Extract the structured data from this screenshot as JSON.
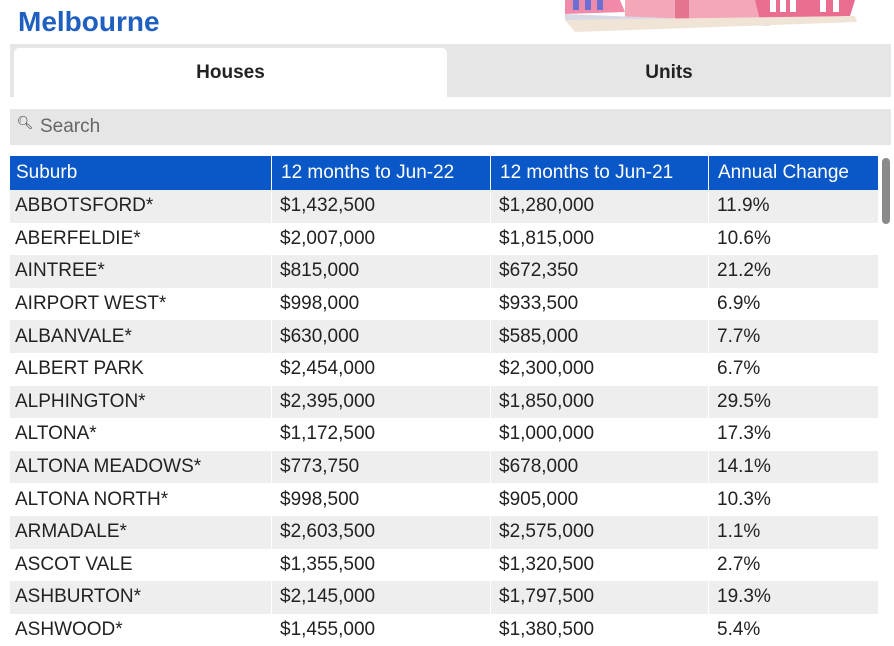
{
  "page": {
    "title": "Melbourne"
  },
  "tabs": [
    {
      "label": "Houses",
      "active": true
    },
    {
      "label": "Units",
      "active": false
    }
  ],
  "search": {
    "placeholder": "Search",
    "value": ""
  },
  "table": {
    "headers": [
      "Suburb",
      "12 months to Jun-22",
      "12 months to Jun-21",
      "Annual Change"
    ],
    "rows": [
      [
        "ABBOTSFORD*",
        "$1,432,500",
        "$1,280,000",
        "11.9%"
      ],
      [
        "ABERFELDIE*",
        "$2,007,000",
        "$1,815,000",
        "10.6%"
      ],
      [
        "AINTREE*",
        "$815,000",
        "$672,350",
        "21.2%"
      ],
      [
        "AIRPORT WEST*",
        "$998,000",
        "$933,500",
        "6.9%"
      ],
      [
        "ALBANVALE*",
        "$630,000",
        "$585,000",
        "7.7%"
      ],
      [
        "ALBERT PARK",
        "$2,454,000",
        "$2,300,000",
        "6.7%"
      ],
      [
        "ALPHINGTON*",
        "$2,395,000",
        "$1,850,000",
        "29.5%"
      ],
      [
        "ALTONA*",
        "$1,172,500",
        "$1,000,000",
        "17.3%"
      ],
      [
        "ALTONA MEADOWS*",
        "$773,750",
        "$678,000",
        "14.1%"
      ],
      [
        "ALTONA NORTH*",
        "$998,500",
        "$905,000",
        "10.3%"
      ],
      [
        "ARMADALE*",
        "$2,603,500",
        "$2,575,000",
        "1.1%"
      ],
      [
        "ASCOT VALE",
        "$1,355,500",
        "$1,320,500",
        "2.7%"
      ],
      [
        "ASHBURTON*",
        "$2,145,000",
        "$1,797,500",
        "19.3%"
      ],
      [
        "ASHWOOD*",
        "$1,455,000",
        "$1,380,500",
        "5.4%"
      ]
    ]
  },
  "colors": {
    "title": "#1f5fbf",
    "header_bg": "#0a58c7",
    "stripe": "#eeeeee",
    "bar_bg": "#e6e6e6"
  },
  "icons": {
    "search": "search-icon",
    "header_art": "houses-illustration"
  }
}
